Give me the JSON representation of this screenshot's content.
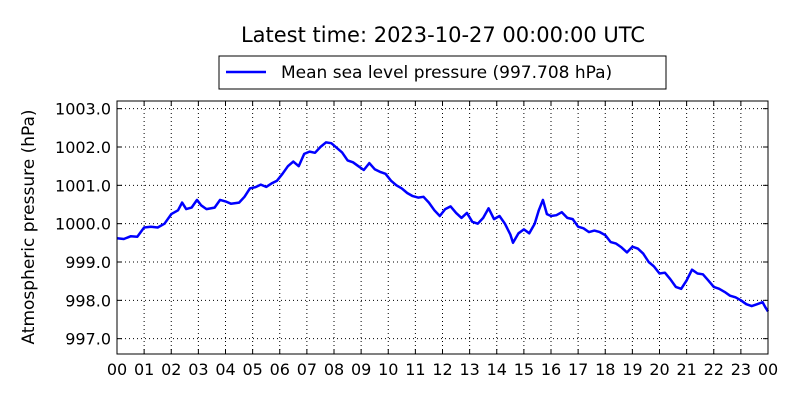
{
  "chart_data": {
    "type": "line",
    "title": "Latest time: 2023-10-27 00:00:00 UTC",
    "ylabel": "Atmospheric pressure (hPa)",
    "xlabel": "",
    "xlim": [
      0,
      24
    ],
    "ylim": [
      996.6,
      1003.2
    ],
    "x_tick_labels": [
      "00",
      "01",
      "02",
      "03",
      "04",
      "05",
      "06",
      "07",
      "08",
      "09",
      "10",
      "11",
      "12",
      "13",
      "14",
      "15",
      "16",
      "17",
      "18",
      "19",
      "20",
      "21",
      "22",
      "23",
      "00"
    ],
    "y_ticks": [
      997.0,
      998.0,
      999.0,
      1000.0,
      1001.0,
      1002.0,
      1003.0
    ],
    "y_tick_labels": [
      "997.0",
      "998.0",
      "999.0",
      "1000.0",
      "1001.0",
      "1002.0",
      "1003.0"
    ],
    "grid": true,
    "legend_position": "top-center",
    "series": [
      {
        "name": "Mean sea level pressure (997.708 hPa)",
        "color": "#0000ff",
        "points": [
          [
            0.0,
            999.62
          ],
          [
            0.25,
            999.6
          ],
          [
            0.5,
            999.67
          ],
          [
            0.75,
            999.66
          ],
          [
            1.0,
            999.9
          ],
          [
            1.25,
            999.92
          ],
          [
            1.5,
            999.9
          ],
          [
            1.75,
            1000.0
          ],
          [
            2.0,
            1000.25
          ],
          [
            2.25,
            1000.35
          ],
          [
            2.4,
            1000.55
          ],
          [
            2.55,
            1000.38
          ],
          [
            2.75,
            1000.42
          ],
          [
            2.95,
            1000.62
          ],
          [
            3.1,
            1000.48
          ],
          [
            3.3,
            1000.38
          ],
          [
            3.6,
            1000.42
          ],
          [
            3.8,
            1000.62
          ],
          [
            4.0,
            1000.58
          ],
          [
            4.2,
            1000.52
          ],
          [
            4.5,
            1000.55
          ],
          [
            4.7,
            1000.7
          ],
          [
            4.9,
            1000.92
          ],
          [
            5.1,
            1000.95
          ],
          [
            5.3,
            1001.02
          ],
          [
            5.5,
            1000.96
          ],
          [
            5.7,
            1001.05
          ],
          [
            5.9,
            1001.12
          ],
          [
            6.1,
            1001.3
          ],
          [
            6.3,
            1001.5
          ],
          [
            6.5,
            1001.62
          ],
          [
            6.7,
            1001.5
          ],
          [
            6.9,
            1001.82
          ],
          [
            7.1,
            1001.88
          ],
          [
            7.3,
            1001.85
          ],
          [
            7.5,
            1002.0
          ],
          [
            7.7,
            1002.12
          ],
          [
            7.9,
            1002.1
          ],
          [
            8.1,
            1001.98
          ],
          [
            8.3,
            1001.86
          ],
          [
            8.5,
            1001.65
          ],
          [
            8.7,
            1001.6
          ],
          [
            8.9,
            1001.5
          ],
          [
            9.1,
            1001.4
          ],
          [
            9.3,
            1001.58
          ],
          [
            9.5,
            1001.42
          ],
          [
            9.7,
            1001.35
          ],
          [
            9.9,
            1001.3
          ],
          [
            10.1,
            1001.12
          ],
          [
            10.3,
            1001.0
          ],
          [
            10.5,
            1000.92
          ],
          [
            10.7,
            1000.8
          ],
          [
            10.9,
            1000.72
          ],
          [
            11.1,
            1000.68
          ],
          [
            11.3,
            1000.7
          ],
          [
            11.5,
            1000.55
          ],
          [
            11.7,
            1000.35
          ],
          [
            11.9,
            1000.2
          ],
          [
            12.1,
            1000.38
          ],
          [
            12.3,
            1000.45
          ],
          [
            12.5,
            1000.28
          ],
          [
            12.7,
            1000.15
          ],
          [
            12.9,
            1000.28
          ],
          [
            13.1,
            1000.05
          ],
          [
            13.3,
            1000.0
          ],
          [
            13.5,
            1000.15
          ],
          [
            13.7,
            1000.4
          ],
          [
            13.9,
            1000.12
          ],
          [
            14.1,
            1000.2
          ],
          [
            14.3,
            1000.0
          ],
          [
            14.5,
            999.72
          ],
          [
            14.6,
            999.5
          ],
          [
            14.8,
            999.75
          ],
          [
            15.0,
            999.85
          ],
          [
            15.2,
            999.75
          ],
          [
            15.4,
            1000.0
          ],
          [
            15.55,
            1000.35
          ],
          [
            15.7,
            1000.62
          ],
          [
            15.85,
            1000.25
          ],
          [
            16.0,
            1000.2
          ],
          [
            16.2,
            1000.22
          ],
          [
            16.4,
            1000.3
          ],
          [
            16.6,
            1000.15
          ],
          [
            16.8,
            1000.12
          ],
          [
            17.0,
            999.92
          ],
          [
            17.2,
            999.88
          ],
          [
            17.4,
            999.78
          ],
          [
            17.6,
            999.82
          ],
          [
            17.8,
            999.78
          ],
          [
            18.0,
            999.7
          ],
          [
            18.2,
            999.52
          ],
          [
            18.4,
            999.48
          ],
          [
            18.6,
            999.38
          ],
          [
            18.8,
            999.25
          ],
          [
            19.0,
            999.4
          ],
          [
            19.2,
            999.35
          ],
          [
            19.4,
            999.22
          ],
          [
            19.6,
            999.0
          ],
          [
            19.8,
            998.88
          ],
          [
            20.0,
            998.7
          ],
          [
            20.2,
            998.72
          ],
          [
            20.4,
            998.55
          ],
          [
            20.6,
            998.35
          ],
          [
            20.8,
            998.3
          ],
          [
            21.0,
            998.52
          ],
          [
            21.2,
            998.8
          ],
          [
            21.4,
            998.7
          ],
          [
            21.6,
            998.68
          ],
          [
            21.8,
            998.52
          ],
          [
            22.0,
            998.35
          ],
          [
            22.2,
            998.3
          ],
          [
            22.4,
            998.22
          ],
          [
            22.6,
            998.12
          ],
          [
            22.8,
            998.08
          ],
          [
            23.0,
            998.0
          ],
          [
            23.2,
            997.9
          ],
          [
            23.4,
            997.85
          ],
          [
            23.6,
            997.9
          ],
          [
            23.8,
            997.95
          ],
          [
            23.9,
            997.82
          ],
          [
            24.0,
            997.71
          ]
        ]
      }
    ]
  }
}
